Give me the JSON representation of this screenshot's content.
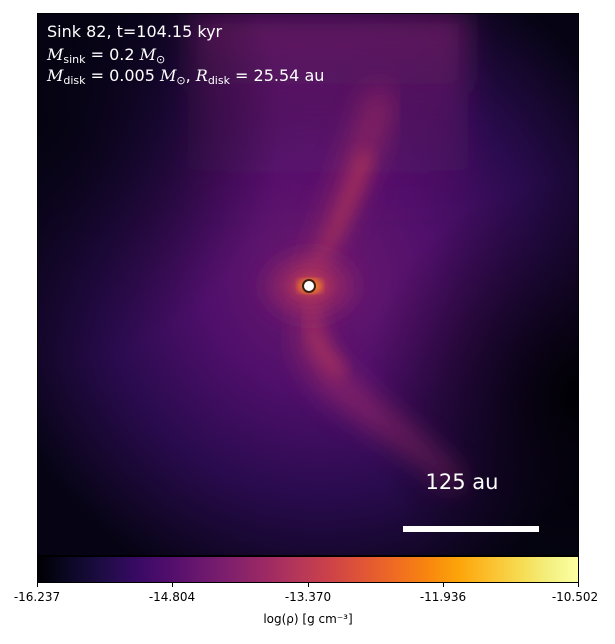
{
  "annotation": {
    "line1": "Sink 82, t=104.15 kyr",
    "line2_symbol": "M",
    "line2_sub": "sink",
    "line2_value": " = 0.2 ",
    "line2_unit_symbol": "M",
    "line2_unit_sub": "⊙",
    "line3_symbol": "M",
    "line3_sub": "disk",
    "line3_value": " = 0.005 ",
    "line3_unit_symbol": "M",
    "line3_unit_sub": "⊙",
    "line3_sep": ", ",
    "line3_symbol2": "R",
    "line3_sub2": "disk",
    "line3_value2": " = 25.54 au"
  },
  "scale_bar": {
    "label": "125 au"
  },
  "colorbar": {
    "colormap": "inferno",
    "ticks": [
      "-16.237",
      "-14.804",
      "-13.370",
      "-11.936",
      "-10.502"
    ],
    "label": "log(ρ) [g cm⁻³]"
  },
  "colors": {
    "sink_marker": "#ffffff",
    "text": "#ffffff"
  }
}
